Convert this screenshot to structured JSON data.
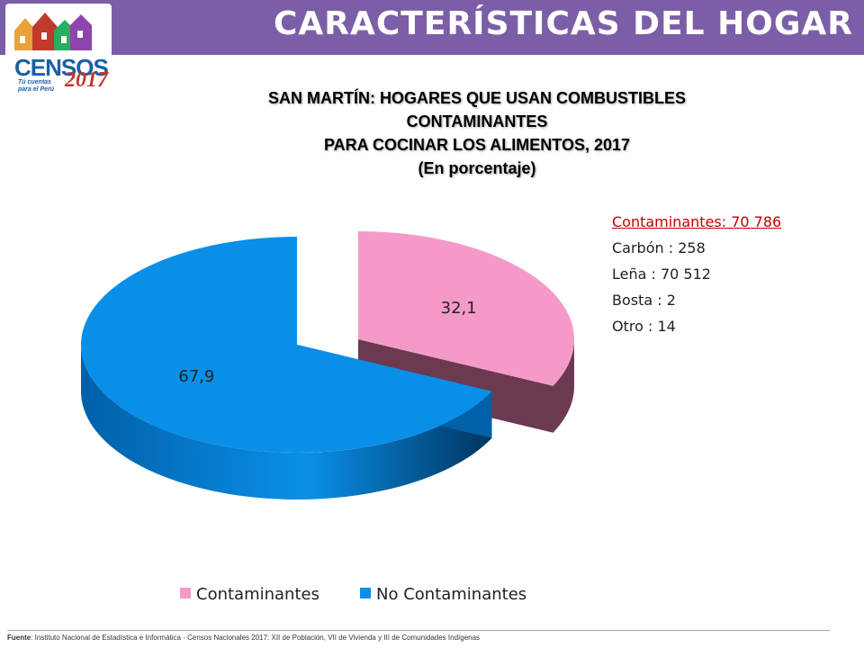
{
  "header": {
    "title": "CARACTERÍSTICAS DEL HOGAR",
    "logo_word": "CENSOS",
    "logo_year": "2017",
    "logo_tagline": "Tú cuentas para el Perú"
  },
  "note": {
    "heading": "Contaminantes: 70 786",
    "items": [
      "Carbón : 258",
      "Leña : 70 512",
      "Bosta : 2",
      "Otro :  14"
    ]
  },
  "footer": {
    "label": "Fuente",
    "text": ": Instituto Nacional de Estadística e Informática - Censos Nacionales 2017: XII de Población, VII de Vivienda y III de Comunidades Indígenas"
  },
  "colors": {
    "banner": "#7b5ea7",
    "contaminantes": "#f59ac8",
    "contaminantes_side": "#6b3a50",
    "no_contaminantes": "#0a8fe8",
    "no_contaminantes_side": "#0060a8"
  },
  "chart_data": {
    "type": "pie",
    "title_lines": [
      "SAN MARTÍN: HOGARES QUE USAN COMBUSTIBLES",
      "CONTAMINANTES",
      "PARA COCINAR LOS ALIMENTOS,  2017",
      "(En porcentaje)"
    ],
    "categories": [
      "Contaminantes",
      "No Contaminantes"
    ],
    "values": [
      32.1,
      67.9
    ],
    "data_labels": [
      "32,1",
      "67,9"
    ],
    "legend_position": "bottom",
    "exploded": "Contaminantes",
    "three_d": true
  }
}
